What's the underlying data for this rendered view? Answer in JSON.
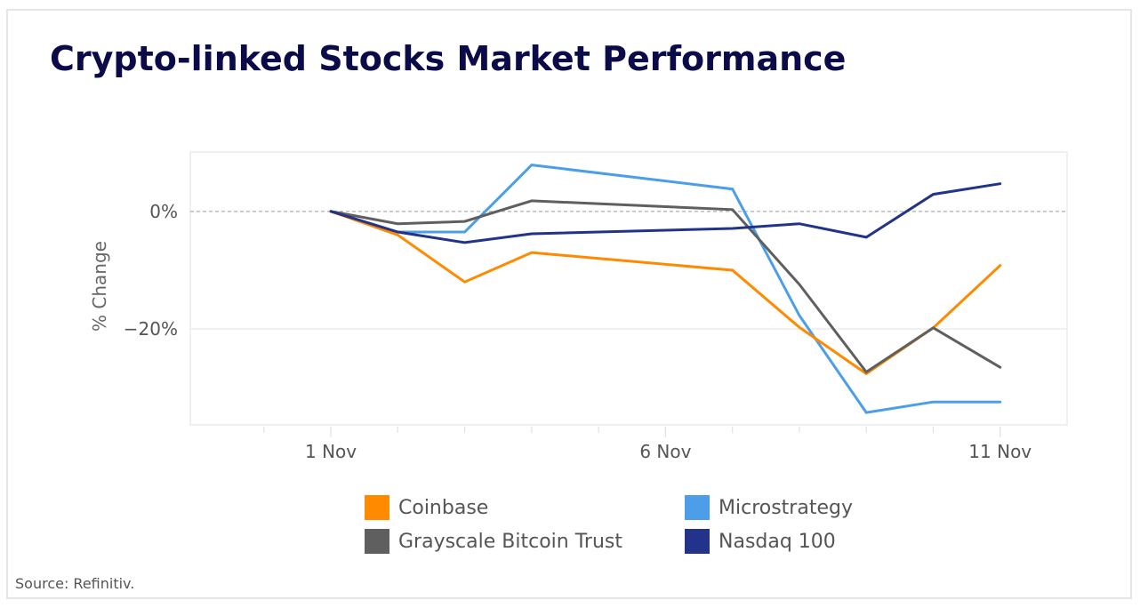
{
  "chart_data": {
    "type": "line",
    "title": "Crypto-linked Stocks Market Performance",
    "xlabel": "",
    "ylabel": "% Change",
    "x": [
      "1 Nov",
      "2 Nov",
      "3 Nov",
      "4 Nov",
      "7 Nov",
      "8 Nov",
      "9 Nov",
      "10 Nov",
      "11 Nov"
    ],
    "x_day": [
      1,
      2,
      3,
      4,
      7,
      8,
      9,
      10,
      11
    ],
    "xlim": [
      -1.1,
      12.0
    ],
    "x_ticks": [
      {
        "day": 1,
        "label": "1 Nov"
      },
      {
        "day": 6,
        "label": "6 Nov"
      },
      {
        "day": 11,
        "label": "11 Nov"
      }
    ],
    "x_minor_tick_days": [
      0,
      1,
      2,
      3,
      4,
      5,
      6,
      7,
      8,
      9,
      10,
      11
    ],
    "ylim": [
      -36.3,
      10.1
    ],
    "y_ticks": [
      {
        "value": 0,
        "label": "0%"
      },
      {
        "value": -20,
        "label": "−20%"
      }
    ],
    "grid": true,
    "zero_line": "dashed",
    "legend_position": "bottom",
    "series": [
      {
        "name": "Coinbase",
        "color": "#ff8a00",
        "values": [
          0,
          -4.0,
          -12.0,
          -7.0,
          -10.0,
          -19.7,
          -27.6,
          -19.8,
          -9.2
        ]
      },
      {
        "name": "Microstrategy",
        "color": "#4c9ee8",
        "values": [
          0,
          -3.5,
          -3.5,
          7.9,
          3.8,
          -17.7,
          -34.2,
          -32.4,
          -32.4
        ]
      },
      {
        "name": "Grayscale Bitcoin Trust",
        "color": "#5f5f5f",
        "values": [
          0,
          -2.1,
          -1.7,
          1.8,
          0.3,
          -12.4,
          -27.3,
          -19.8,
          -26.5
        ]
      },
      {
        "name": "Nasdaq 100",
        "color": "#22348a",
        "values": [
          0,
          -3.5,
          -5.3,
          -3.8,
          -2.9,
          -2.1,
          -4.4,
          2.9,
          4.7
        ]
      }
    ]
  },
  "legend": {
    "items": [
      {
        "label": "Coinbase",
        "color": "#ff8a00"
      },
      {
        "label": "Microstrategy",
        "color": "#4c9ee8"
      },
      {
        "label": "Grayscale Bitcoin Trust",
        "color": "#5f5f5f"
      },
      {
        "label": "Nasdaq 100",
        "color": "#22348a"
      }
    ]
  },
  "source": "Source: Refinitiv."
}
